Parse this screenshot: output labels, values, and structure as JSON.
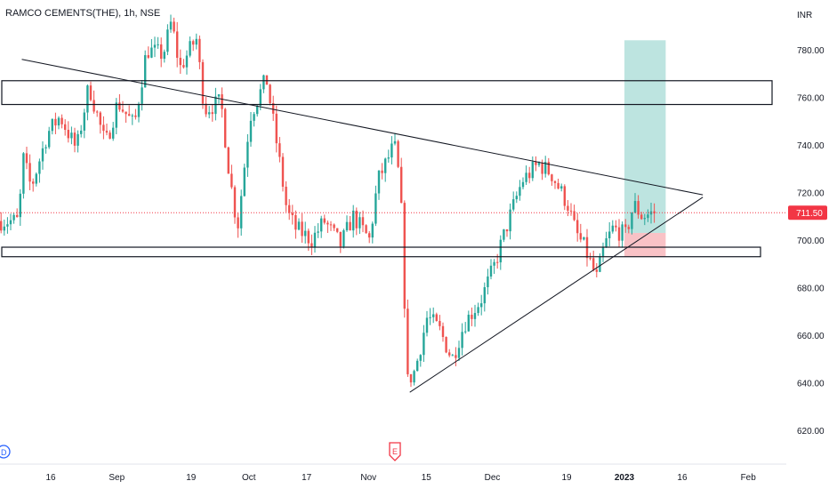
{
  "header": {
    "symbol_line": "RAMCO CEMENTS(THE), 1h, NSE"
  },
  "colors": {
    "up": "#26a69a",
    "down": "#ef5350",
    "target_zone": "#b2dfdb",
    "stop_zone": "#f8bbc0",
    "price_tag": "#f23645",
    "line": "#131722",
    "badge_blue": "#2962ff",
    "badge_red": "#f23645"
  },
  "chart_data": {
    "type": "candlestick",
    "currency_label": "INR",
    "y_ticks": [
      "780.00",
      "760.00",
      "740.00",
      "720.00",
      "700.00",
      "680.00",
      "660.00",
      "640.00",
      "620.00"
    ],
    "ylim": [
      612,
      792
    ],
    "x_ticks": [
      {
        "label": "16",
        "date": "2022-08-16"
      },
      {
        "label": "Sep",
        "date": "2022-09-01"
      },
      {
        "label": "19",
        "date": "2022-09-19"
      },
      {
        "label": "Oct",
        "date": "2022-10-03"
      },
      {
        "label": "17",
        "date": "2022-10-17"
      },
      {
        "label": "Nov",
        "date": "2022-11-01"
      },
      {
        "label": "15",
        "date": "2022-11-15"
      },
      {
        "label": "Dec",
        "date": "2022-12-01"
      },
      {
        "label": "19",
        "date": "2022-12-19"
      },
      {
        "label": "2023",
        "date": "2023-01-02",
        "bold": true
      },
      {
        "label": "16",
        "date": "2023-01-16"
      },
      {
        "label": "Feb",
        "date": "2023-02-01"
      }
    ],
    "last_price": "711.50",
    "anchors": [
      [
        "2022-08-08",
        708
      ],
      [
        "2022-08-09",
        735
      ],
      [
        "2022-08-11",
        722
      ],
      [
        "2022-08-15",
        745
      ],
      [
        "2022-08-18",
        752
      ],
      [
        "2022-08-22",
        738
      ],
      [
        "2022-08-25",
        765
      ],
      [
        "2022-08-29",
        740
      ],
      [
        "2022-09-01",
        758
      ],
      [
        "2022-09-05",
        748
      ],
      [
        "2022-09-08",
        780
      ],
      [
        "2022-09-12",
        778
      ],
      [
        "2022-09-14",
        792
      ],
      [
        "2022-09-16",
        772
      ],
      [
        "2022-09-20",
        785
      ],
      [
        "2022-09-22",
        755
      ],
      [
        "2022-09-26",
        758
      ],
      [
        "2022-09-28",
        728
      ],
      [
        "2022-09-30",
        705
      ],
      [
        "2022-10-03",
        752
      ],
      [
        "2022-10-05",
        760
      ],
      [
        "2022-10-07",
        768
      ],
      [
        "2022-10-10",
        735
      ],
      [
        "2022-10-12",
        712
      ],
      [
        "2022-10-14",
        705
      ],
      [
        "2022-10-18",
        700
      ],
      [
        "2022-10-21",
        708
      ],
      [
        "2022-10-25",
        698
      ],
      [
        "2022-10-28",
        710
      ],
      [
        "2022-11-01",
        700
      ],
      [
        "2022-11-03",
        725
      ],
      [
        "2022-11-07",
        740
      ],
      [
        "2022-11-08",
        728
      ],
      [
        "2022-11-09",
        705
      ],
      [
        "2022-11-10",
        640
      ],
      [
        "2022-11-12",
        645
      ],
      [
        "2022-11-15",
        668
      ],
      [
        "2022-11-18",
        662
      ],
      [
        "2022-11-21",
        650
      ],
      [
        "2022-11-24",
        665
      ],
      [
        "2022-11-28",
        675
      ],
      [
        "2022-12-01",
        688
      ],
      [
        "2022-12-05",
        710
      ],
      [
        "2022-12-08",
        725
      ],
      [
        "2022-12-12",
        732
      ],
      [
        "2022-12-15",
        728
      ],
      [
        "2022-12-19",
        715
      ],
      [
        "2022-12-21",
        703
      ],
      [
        "2022-12-23",
        697
      ],
      [
        "2022-12-26",
        684
      ],
      [
        "2022-12-28",
        698
      ],
      [
        "2022-12-30",
        705
      ],
      [
        "2023-01-02",
        702
      ],
      [
        "2023-01-04",
        715
      ],
      [
        "2023-01-06",
        710
      ],
      [
        "2023-01-09",
        711.5
      ]
    ],
    "drawings": {
      "upper_resistance_zone": [
        757,
        767
      ],
      "lower_support_zone": [
        693,
        697
      ],
      "descending_trendline": [
        [
          "2022-08-09",
          776
        ],
        [
          "2023-01-21",
          719
        ]
      ],
      "ascending_trendline": [
        [
          "2022-11-11",
          636
        ],
        [
          "2023-01-21",
          718
        ]
      ],
      "long_position": {
        "start": "2023-01-02",
        "end": "2023-01-12",
        "entry": 703,
        "target": 784,
        "stop": 693
      }
    }
  },
  "badges": {
    "left_badge": "D",
    "event_badge": "E"
  }
}
